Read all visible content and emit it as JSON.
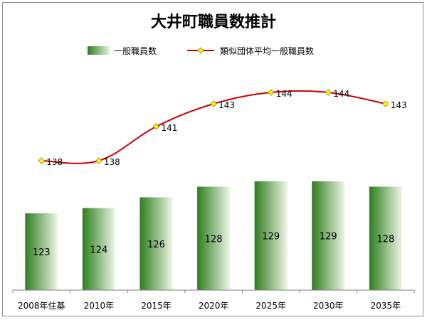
{
  "chart_data": {
    "type": "bar",
    "title": "大井町職員数推計",
    "categories": [
      "2008年住基",
      "2010年",
      "2015年",
      "2020年",
      "2025年",
      "2030年",
      "2035年"
    ],
    "series": [
      {
        "name": "一般職員数",
        "kind": "bar",
        "values": [
          123,
          124,
          126,
          128,
          129,
          129,
          128
        ]
      },
      {
        "name": "類似団体平均一般職員数",
        "kind": "line",
        "values": [
          138,
          138,
          141,
          143,
          144,
          144,
          143
        ]
      }
    ],
    "xlabel": "",
    "ylabel": "",
    "legend_position": "top",
    "grid": false,
    "colors": {
      "bar_dark": "#2e7d1e",
      "bar_light": "#eef6e6",
      "line": "#cc0000",
      "marker": "#ffff00"
    }
  }
}
